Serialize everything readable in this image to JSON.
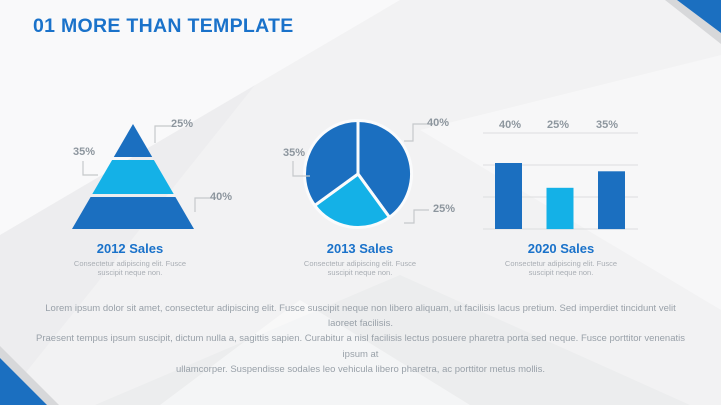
{
  "slide": {
    "title": "01 MORE THAN TEMPLATE",
    "body_paragraph_lines": [
      "Lorem ipsum dolor sit amet, consectetur adipiscing elit. Fusce suscipit neque non libero aliquam, ut facilisis lacus pretium. Sed imperdiet tincidunt velit laoreet facilisis.",
      "Praesent tempus ipsum suscipit, dictum nulla a, sagittis sapien. Curabitur a nisl facilisis lectus posuere pharetra porta sed neque. Fusce porttitor venenatis ipsum at",
      "ullamcorper. Suspendisse sodales leo vehicula libero pharetra, ac porttitor metus mollis."
    ]
  },
  "colors": {
    "primary_dark": "#1b6fc0",
    "primary_light": "#14b1e7",
    "title_blue": "#1a72ca",
    "label_gray": "#8d969e",
    "connector_gray": "#c6c9cb"
  },
  "chart_data": [
    {
      "type": "pyramid",
      "title": "2012 Sales",
      "description_lines": [
        "Consectetur adipiscing elit. Fusce",
        "suscipit neque non."
      ],
      "segments": [
        {
          "label": "25%",
          "value": 25,
          "position": "top",
          "tone": "dark"
        },
        {
          "label": "35%",
          "value": 35,
          "position": "middle",
          "tone": "light"
        },
        {
          "label": "40%",
          "value": 40,
          "position": "bottom",
          "tone": "dark"
        }
      ]
    },
    {
      "type": "pie",
      "title": "2013 Sales",
      "description_lines": [
        "Consectetur adipiscing elit. Fusce",
        "suscipit neque non."
      ],
      "start_angle_deg": 0,
      "direction": "clockwise",
      "segments": [
        {
          "label": "40%",
          "value": 40,
          "tone": "dark"
        },
        {
          "label": "25%",
          "value": 25,
          "tone": "light"
        },
        {
          "label": "35%",
          "value": 35,
          "tone": "dark"
        }
      ]
    },
    {
      "type": "bar",
      "title": "2020 Sales",
      "description_lines": [
        "Consectetur adipiscing elit. Fusce",
        "suscipit neque non."
      ],
      "gridlines": true,
      "segments": [
        {
          "label": "40%",
          "value": 40,
          "tone": "dark"
        },
        {
          "label": "25%",
          "value": 25,
          "tone": "light"
        },
        {
          "label": "35%",
          "value": 35,
          "tone": "dark"
        }
      ]
    }
  ]
}
